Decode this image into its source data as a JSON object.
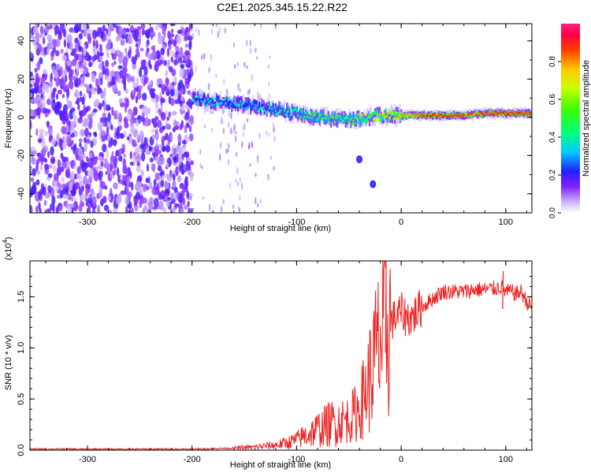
{
  "figure": {
    "title": "C2E1.2025.345.15.22.R22"
  },
  "chart_data": [
    {
      "type": "heatmap",
      "title": "",
      "xlabel": "Height of straight line (km)",
      "ylabel": "Frequency (Hz)",
      "xlim": [
        -355,
        125
      ],
      "ylim": [
        -50,
        49
      ],
      "xticks": [
        -300,
        -200,
        -100,
        0,
        100
      ],
      "yticks": [
        -40,
        -20,
        0,
        20,
        40
      ],
      "colorbar": {
        "label": "Normalized spectral amplitude",
        "range": [
          0,
          1
        ],
        "ticks": [
          0.0,
          0.2,
          0.4,
          0.6,
          0.8
        ]
      },
      "noise_region": {
        "x": [
          -355,
          -200
        ],
        "description_level": 0.15
      },
      "ridge": {
        "x": [
          -200,
          -180,
          -160,
          -140,
          -120,
          -100,
          -80,
          -60,
          -40,
          -30,
          -20,
          -10,
          0,
          20,
          40,
          60,
          80,
          100,
          125
        ],
        "y": [
          10,
          8,
          7,
          6,
          4,
          2,
          0,
          -1,
          -1,
          0,
          1,
          1,
          1,
          1,
          1,
          1,
          2,
          2,
          2
        ],
        "amplitude": [
          0.35,
          0.4,
          0.35,
          0.35,
          0.4,
          0.45,
          0.5,
          0.5,
          0.55,
          0.6,
          0.7,
          0.7,
          0.75,
          0.85,
          0.9,
          0.85,
          0.9,
          0.95,
          0.85
        ]
      },
      "isolated_peaks": [
        {
          "x": -40,
          "y": -22
        },
        {
          "x": -27,
          "y": -35
        }
      ]
    },
    {
      "type": "line",
      "title": "",
      "xlabel": "Height of straight line (km)",
      "ylabel": "SNR (10 * v/v)",
      "yscale_note": "(x10",
      "yscale_exp": "4",
      "xlim": [
        -355,
        125
      ],
      "ylim": [
        0,
        1.85
      ],
      "xticks": [
        -300,
        -200,
        -100,
        0,
        100
      ],
      "yticks": [
        0.0,
        0.5,
        1.0,
        1.5
      ],
      "ytick_labels": [
        "0.0",
        "0.5",
        "1.0",
        "1.5"
      ],
      "grid": false,
      "color": "#ee2222",
      "series": [
        {
          "name": "SNR",
          "x": [
            -355,
            -300,
            -250,
            -200,
            -180,
            -160,
            -150,
            -140,
            -120,
            -110,
            -100,
            -90,
            -80,
            -70,
            -60,
            -50,
            -45,
            -40,
            -35,
            -30,
            -25,
            -22,
            -20,
            -18,
            -15,
            -12,
            -10,
            -5,
            0,
            5,
            10,
            15,
            20,
            30,
            40,
            50,
            60,
            70,
            80,
            90,
            95,
            100,
            105,
            110,
            115,
            120,
            125
          ],
          "y": [
            0.01,
            0.01,
            0.01,
            0.01,
            0.015,
            0.02,
            0.025,
            0.03,
            0.05,
            0.07,
            0.1,
            0.15,
            0.2,
            0.25,
            0.28,
            0.3,
            0.35,
            0.4,
            0.55,
            0.7,
            0.9,
            1.0,
            1.05,
            1.1,
            1.15,
            1.2,
            1.25,
            1.3,
            1.35,
            1.3,
            1.3,
            1.35,
            1.4,
            1.48,
            1.55,
            1.55,
            1.55,
            1.57,
            1.57,
            1.58,
            1.6,
            1.55,
            1.55,
            1.53,
            1.55,
            1.45,
            1.4
          ]
        }
      ],
      "spikes": [
        {
          "x": -15,
          "y": 1.83
        },
        {
          "x": 97,
          "y": 1.75
        }
      ]
    }
  ]
}
